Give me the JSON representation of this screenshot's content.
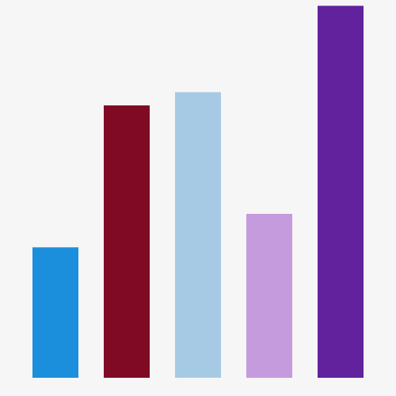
{
  "chart_data": {
    "type": "bar",
    "title": "",
    "xlabel": "",
    "ylabel": "",
    "categories": [
      "",
      "",
      "",
      "",
      ""
    ],
    "values": [
      29.6,
      61.8,
      64.8,
      37.2,
      84.4
    ],
    "colors": [
      "#1b8fdc",
      "#800a24",
      "#a6cae3",
      "#c59bde",
      "#62229e"
    ],
    "ylim": [
      0,
      85
    ],
    "grid": false,
    "legend": "none"
  }
}
